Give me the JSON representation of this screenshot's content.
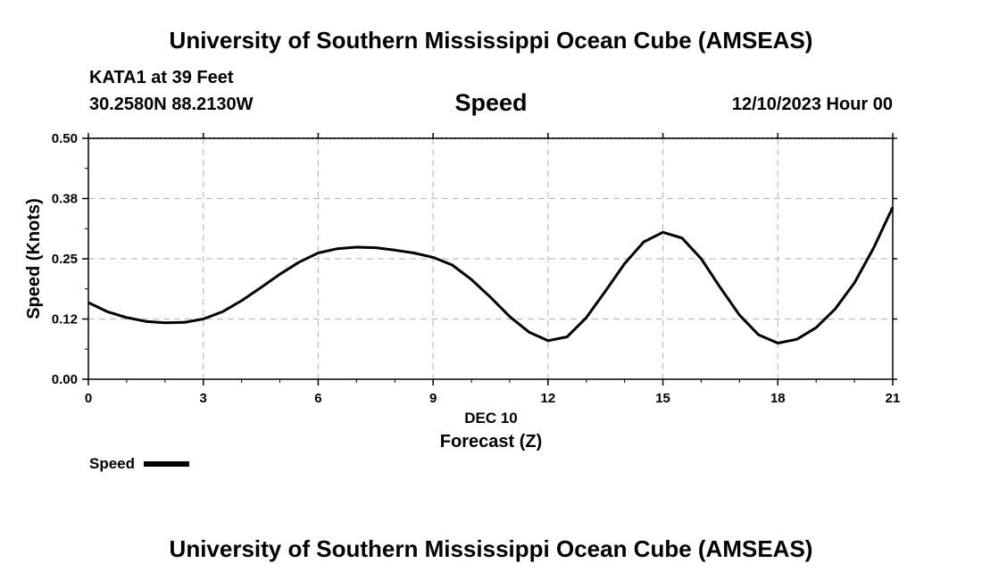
{
  "header": {
    "title": "University of Southern Mississippi Ocean Cube (AMSEAS)",
    "station": "KATA1 at 39 Feet",
    "coords": "30.2580N  88.2130W",
    "datetime": "12/10/2023 Hour 00"
  },
  "footer": {
    "title": "University of Southern Mississippi Ocean Cube (AMSEAS)"
  },
  "chart_data": {
    "type": "line",
    "title": "Speed",
    "xlabel": "Forecast (Z)",
    "date_label": "DEC 10",
    "ylabel": "Speed (Knots)",
    "xlim": [
      0,
      21
    ],
    "ylim": [
      0,
      0.5
    ],
    "x_ticks": [
      0,
      3,
      6,
      9,
      12,
      15,
      18,
      21
    ],
    "x_tick_labels": [
      "0",
      "3",
      "6",
      "9",
      "12",
      "15",
      "18",
      "21"
    ],
    "y_ticks": [
      0,
      0.125,
      0.25,
      0.375,
      0.5
    ],
    "y_tick_labels": [
      "0.00",
      "0.12",
      "0.25",
      "0.38",
      "0.50"
    ],
    "grid": true,
    "legend": "bottom-left",
    "series": [
      {
        "name": "Speed",
        "color": "#000000",
        "x": [
          0,
          0.5,
          1,
          1.5,
          2,
          2.5,
          3,
          3.5,
          4,
          4.5,
          5,
          5.5,
          6,
          6.5,
          7,
          7.5,
          8,
          8.5,
          9,
          9.5,
          10,
          10.5,
          11,
          11.5,
          12,
          12.5,
          13,
          13.5,
          14,
          14.5,
          15,
          15.5,
          16,
          16.5,
          17,
          17.5,
          18,
          18.5,
          19,
          19.5,
          20,
          20.5,
          21
        ],
        "values": [
          0.159,
          0.14,
          0.128,
          0.12,
          0.117,
          0.118,
          0.125,
          0.14,
          0.163,
          0.19,
          0.218,
          0.243,
          0.262,
          0.271,
          0.274,
          0.273,
          0.268,
          0.262,
          0.253,
          0.237,
          0.207,
          0.17,
          0.13,
          0.098,
          0.08,
          0.088,
          0.128,
          0.183,
          0.24,
          0.285,
          0.305,
          0.293,
          0.25,
          0.19,
          0.133,
          0.092,
          0.075,
          0.083,
          0.107,
          0.146,
          0.2,
          0.272,
          0.357
        ]
      }
    ]
  }
}
